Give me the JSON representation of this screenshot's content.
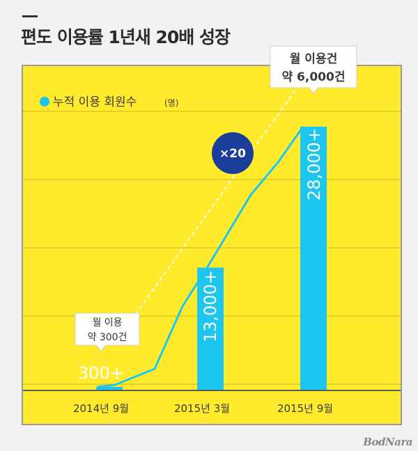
{
  "title": "편도 이용률 1년새 20배 성장",
  "watermark": "BodNara",
  "colors": {
    "background": "#ffeb2c",
    "bar": "#1cc6ef",
    "line": "#1cc6ef",
    "badge": "#1a3f9b"
  },
  "chart_data": {
    "type": "bar",
    "categories": [
      "2014년 9월",
      "2015년 3월",
      "2015년 9월"
    ],
    "bar_labels": [
      "300+",
      "13,000+",
      "28,000+"
    ],
    "series": [
      {
        "name": "누적 이용 회원수",
        "values": [
          300,
          13000,
          28000
        ]
      }
    ],
    "legend": {
      "label": "누적 이용 회원수",
      "unit": "(명)",
      "position": "top-left"
    },
    "ylim": [
      0,
      30000
    ],
    "grid": true,
    "line_trend": [
      300,
      1800,
      13000,
      21000,
      28000
    ],
    "annotations": {
      "start_callout": [
        "월 이용",
        "약 300건"
      ],
      "end_callout": [
        "월 이용건",
        "약 6,000건"
      ],
      "multiplier": "×20"
    }
  }
}
